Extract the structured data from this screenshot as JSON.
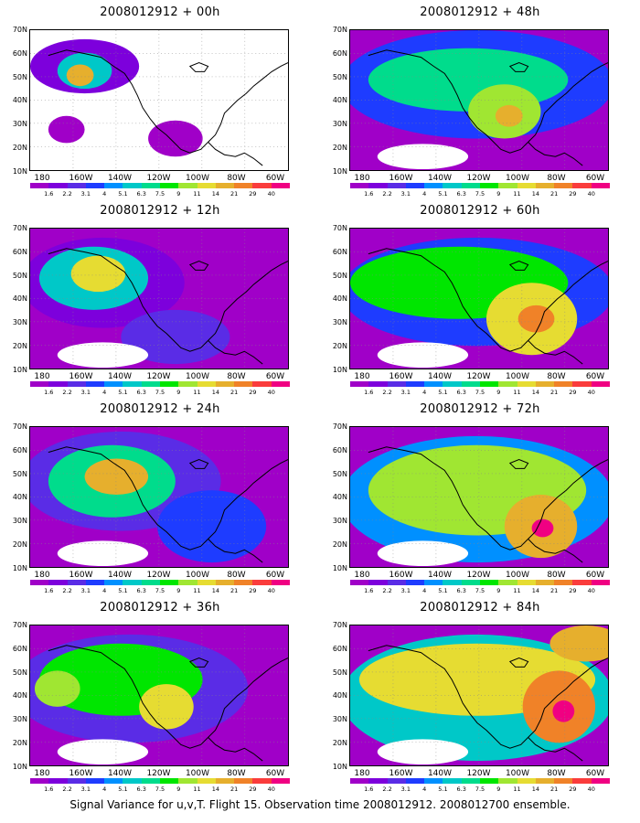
{
  "panels": [
    {
      "title": "2008012912 + 00h",
      "variant": 0
    },
    {
      "title": "2008012912 + 12h",
      "variant": 1
    },
    {
      "title": "2008012912 + 24h",
      "variant": 2
    },
    {
      "title": "2008012912 + 36h",
      "variant": 3
    },
    {
      "title": "2008012912 + 48h",
      "variant": 4
    },
    {
      "title": "2008012912 + 60h",
      "variant": 5
    },
    {
      "title": "2008012912 + 72h",
      "variant": 6
    },
    {
      "title": "2008012912 + 84h",
      "variant": 7
    }
  ],
  "lat_labels": [
    "70N",
    "60N",
    "50N",
    "40N",
    "30N",
    "20N",
    "10N"
  ],
  "lon_labels": [
    "180",
    "160W",
    "140W",
    "120W",
    "100W",
    "80W",
    "60W"
  ],
  "colorbar": {
    "levels": [
      "1.6",
      "2.2",
      "3.1",
      "4",
      "5.1",
      "6.3",
      "7.5",
      "9",
      "11",
      "14",
      "21",
      "29",
      "40"
    ],
    "colors": [
      "#a000c8",
      "#7d00dc",
      "#5a2ce6",
      "#1e3cff",
      "#0090ff",
      "#00c8c8",
      "#00dc8c",
      "#00e600",
      "#a0e632",
      "#e6dc32",
      "#e6af2d",
      "#f08228",
      "#fa3c3c",
      "#f00082"
    ]
  },
  "caption": "Signal Variance for u,v,T. Flight 15. Observation time 2008012912. 2008012700 ensemble."
}
